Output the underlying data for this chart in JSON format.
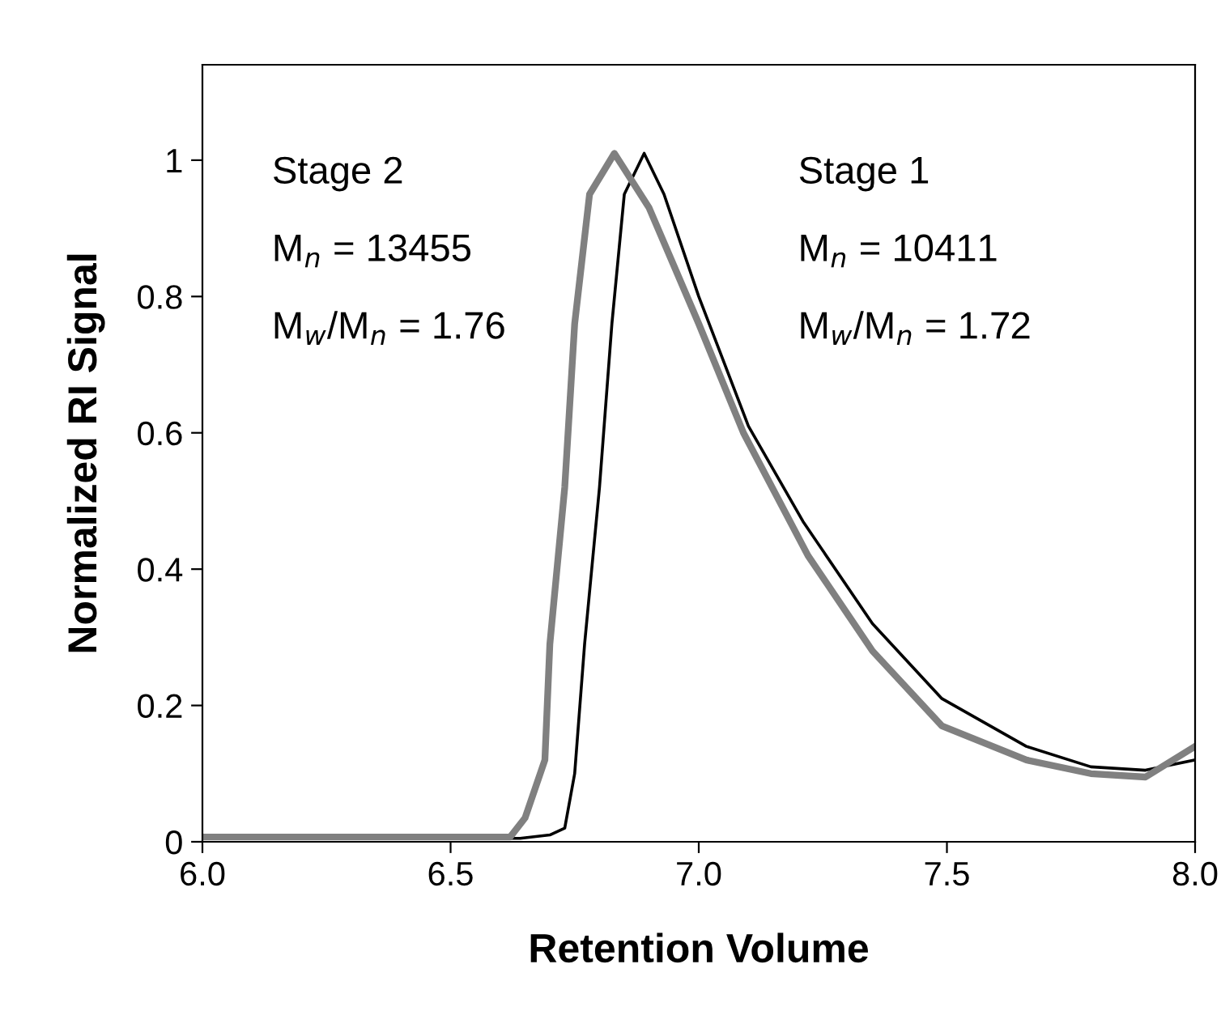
{
  "chart_data": {
    "type": "line",
    "xlabel": "Retention Volume",
    "ylabel": "Normalized RI Signal",
    "xlim": [
      6,
      8
    ],
    "ylim": [
      0,
      1.14
    ],
    "xticks": [
      {
        "value": 6,
        "label": "6.0"
      },
      6.5,
      {
        "value": 7,
        "label": "7.0"
      },
      7.5,
      {
        "value": 8,
        "label": "8.0"
      }
    ],
    "yticks": [
      0,
      0.2,
      0.4,
      0.6,
      0.8,
      1
    ],
    "grid": false,
    "legend": false,
    "marker": "none",
    "line_style": "solid",
    "annotations": [
      "Stage 2",
      "M$_{n}$ = 13455",
      "M$_{w}$/M$_{n}$ = 1.76",
      "Stage 1",
      "M$_{n}$ = 10411",
      "M$_{w}$/M$_{n}$ = 1.72"
    ],
    "series": [
      {
        "color": "#000000",
        "x": [
          6.0,
          6.64,
          6.7,
          6.73,
          6.75,
          6.77,
          6.8,
          6.825,
          6.85,
          6.89,
          6.93,
          7.0,
          7.1,
          7.21,
          7.35,
          7.49,
          7.66,
          7.79,
          7.9,
          8.0
        ],
        "values": [
          0.005,
          0.005,
          0.01,
          0.02,
          0.1,
          0.29,
          0.52,
          0.76,
          0.95,
          1.01,
          0.95,
          0.8,
          0.61,
          0.47,
          0.32,
          0.21,
          0.14,
          0.11,
          0.105,
          0.12
        ]
      },
      {
        "color": "#808080",
        "x": [
          6.0,
          6.62,
          6.65,
          6.69,
          6.7,
          6.73,
          6.75,
          6.78,
          6.83,
          6.9,
          7.0,
          7.09,
          7.22,
          7.35,
          7.49,
          7.66,
          7.79,
          7.9,
          8.0
        ],
        "values": [
          0.007,
          0.007,
          0.035,
          0.12,
          0.29,
          0.52,
          0.76,
          0.95,
          1.01,
          0.93,
          0.76,
          0.6,
          0.42,
          0.28,
          0.17,
          0.12,
          0.1,
          0.095,
          0.14
        ]
      }
    ]
  }
}
